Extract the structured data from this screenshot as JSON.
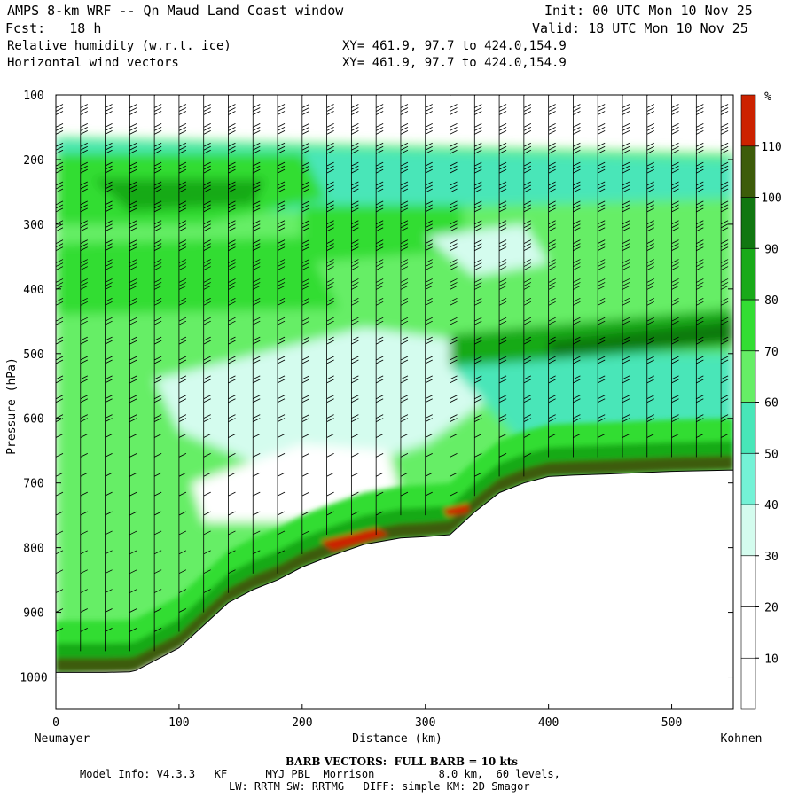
{
  "header": {
    "title": "AMPS 8-km WRF -- Qn Maud Land Coast window",
    "fcst": "Fcst:   18 h",
    "init": "Init: 00 UTC Mon 10 Nov 25",
    "valid": "Valid: 18 UTC Mon 10 Nov 25",
    "field1": "Relative humidity (w.r.t. ice)",
    "field2": "Horizontal wind vectors",
    "xy1": "XY= 461.9, 97.7 to 424.0,154.9",
    "xy2": "XY= 461.9, 97.7 to 424.0,154.9"
  },
  "footer": {
    "barb_note": "BARB VECTORS:  FULL BARB = 10 kts",
    "model_line": "Model Info: V4.3.3   KF      MYJ PBL  Morrison          8.0 km,  60 levels,",
    "physics_line": "LW: RRTM SW: RRTMG   DIFF: simple KM: 2D Smagor"
  },
  "chart_data": {
    "type": "heatmap",
    "ylabel": "Pressure (hPa)",
    "xlabel": "Distance (km)",
    "x_left_label": "Neumayer",
    "x_right_label": "Kohnen",
    "xlim": [
      0,
      550
    ],
    "ylim": [
      1050,
      100
    ],
    "x_ticks": [
      0,
      100,
      200,
      300,
      400,
      500
    ],
    "y_ticks": [
      100,
      200,
      300,
      400,
      500,
      600,
      700,
      800,
      900,
      1000
    ],
    "colorbar": {
      "unit": "%",
      "levels": [
        10,
        20,
        30,
        40,
        50,
        60,
        70,
        80,
        90,
        100,
        110
      ],
      "colors": [
        "#ffffff",
        "#ffffff",
        "#ffffff",
        "#d4fcee",
        "#74f2d6",
        "#48e6b8",
        "#66ee66",
        "#33dd33",
        "#19aa19",
        "#117711",
        "#3d5c0a",
        "#cc2200"
      ]
    },
    "terrain_surface": {
      "x_km": [
        0,
        20,
        40,
        60,
        65,
        80,
        100,
        120,
        140,
        160,
        180,
        200,
        220,
        250,
        280,
        300,
        320,
        340,
        360,
        380,
        400,
        420,
        450,
        500,
        550
      ],
      "p_hpa": [
        993,
        993,
        993,
        992,
        990,
        975,
        955,
        920,
        885,
        865,
        850,
        830,
        815,
        795,
        785,
        783,
        780,
        745,
        715,
        700,
        690,
        688,
        686,
        682,
        680
      ]
    },
    "rh_bands": [
      {
        "name": "top_dry",
        "p_top": 100,
        "p_bot": 165,
        "rh": "<10"
      },
      {
        "name": "upper_moist",
        "p_top": 170,
        "p_bot": 280,
        "rh": "70-100"
      },
      {
        "name": "mid_moist_band",
        "p_top": 450,
        "p_bot": 520,
        "rh": "90-110"
      },
      {
        "name": "mid_dry_pocket",
        "p_top": 520,
        "p_bot": 780,
        "rh": "<40"
      },
      {
        "name": "near_surface_moist",
        "p_top": 650,
        "p_bot": 990,
        "rh": "80-115"
      }
    ],
    "wind_barbs": {
      "note": "full barb = 10 kts",
      "x_km": [
        0,
        20,
        40,
        60,
        80,
        100,
        120,
        140,
        160,
        180,
        200,
        220,
        240,
        260,
        280,
        300,
        320,
        340,
        360,
        380,
        400,
        420,
        440,
        460,
        480,
        500,
        520,
        540
      ],
      "p_levels_hpa": [
        120,
        150,
        180,
        210,
        240,
        270,
        300,
        330,
        360,
        390,
        420,
        450,
        480,
        510,
        540,
        570,
        600,
        630,
        660,
        690,
        720,
        750,
        780,
        810,
        840,
        870,
        900,
        930,
        960
      ]
    }
  }
}
